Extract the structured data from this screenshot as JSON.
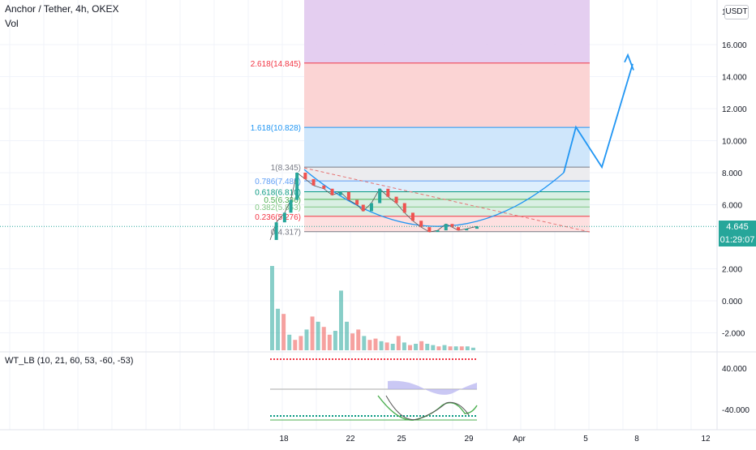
{
  "header": {
    "title": "Anchor / Tether, 4h, OKEX",
    "volume_label": "Vol",
    "currency": "USDT"
  },
  "indicator": {
    "label": "WT_LB (10, 21, 60, 53, -60, -53)",
    "axis_ticks": [
      "40.000",
      "-40.000"
    ]
  },
  "price_tag": {
    "value": "4.645",
    "countdown": "01:29:07"
  },
  "colors": {
    "up": "#26a69a",
    "down": "#ef5350",
    "accent": "#2196f3",
    "purple_zone": "#e1c9ee",
    "red_zone": "#fbd4d4",
    "blue_zone": "#cfe6fb",
    "grey_zone": "#ececef",
    "green_zone": "#d9efe3"
  },
  "chart_data": {
    "type": "candlestick",
    "symbol": "Anchor / Tether",
    "interval": "4h",
    "exchange": "OKEX",
    "x_ticks": [
      "18",
      "22",
      "25",
      "29",
      "Apr",
      "5",
      "8",
      "12"
    ],
    "y_ticks": [
      "16.000",
      "14.000",
      "12.000",
      "10.000",
      "8.000",
      "6.000",
      "2.000",
      "0.000",
      "-2.000"
    ],
    "y_tick_values": [
      16,
      14,
      12,
      10,
      8,
      6,
      2,
      0,
      -2
    ],
    "top_tick": "1",
    "last_price": 4.645,
    "fib_levels": [
      {
        "ratio": "2.618",
        "price": 14.845,
        "label": "2.618(14.845)",
        "color": "#f23645"
      },
      {
        "ratio": "1.618",
        "price": 10.828,
        "label": "1.618(10.828)",
        "color": "#2196f3"
      },
      {
        "ratio": "1",
        "price": 8.345,
        "label": "1(8.345)",
        "color": "#787b86"
      },
      {
        "ratio": "0.786",
        "price": 7.485,
        "label": "0.786(7.485)",
        "color": "#5b9cf6"
      },
      {
        "ratio": "0.618",
        "price": 6.81,
        "label": "0.618(6.810)",
        "color": "#089981"
      },
      {
        "ratio": "0.5",
        "price": 6.336,
        "label": "0.5(6.336)",
        "color": "#4caf50"
      },
      {
        "ratio": "0.382",
        "price": 5.863,
        "label": "0.382(5.863)",
        "color": "#81c784"
      },
      {
        "ratio": "0.236",
        "price": 5.276,
        "label": "0.236(5.276)",
        "color": "#f23645"
      },
      {
        "ratio": "0",
        "price": 4.317,
        "label": "0(4.317)",
        "color": "#787b86"
      }
    ],
    "close_path": [
      [
        0.0,
        3.8
      ],
      [
        0.03,
        4.9
      ],
      [
        0.07,
        5.5
      ],
      [
        0.1,
        6.3
      ],
      [
        0.13,
        8.0
      ],
      [
        0.17,
        7.6
      ],
      [
        0.21,
        7.2
      ],
      [
        0.26,
        7.0
      ],
      [
        0.3,
        6.6
      ],
      [
        0.34,
        6.8
      ],
      [
        0.38,
        6.3
      ],
      [
        0.42,
        6.0
      ],
      [
        0.45,
        5.6
      ],
      [
        0.49,
        6.1
      ],
      [
        0.53,
        7.0
      ],
      [
        0.57,
        6.5
      ],
      [
        0.61,
        6.1
      ],
      [
        0.65,
        5.5
      ],
      [
        0.69,
        5.0
      ],
      [
        0.73,
        4.6
      ],
      [
        0.77,
        4.3
      ],
      [
        0.81,
        4.4
      ],
      [
        0.85,
        4.8
      ],
      [
        0.88,
        4.6
      ],
      [
        0.91,
        4.4
      ],
      [
        0.95,
        4.5
      ],
      [
        1.0,
        4.65
      ]
    ],
    "projection_path": [
      [
        8.0,
        8.3
      ],
      [
        10.85,
        10.85
      ],
      [
        8.35,
        8.35
      ],
      [
        14.8,
        14.8
      ]
    ],
    "volume_bars": [
      [
        1,
        6.5
      ],
      [
        1,
        3.2
      ],
      [
        0,
        2.8
      ],
      [
        1,
        1.2
      ],
      [
        0,
        0.8
      ],
      [
        0,
        1.1
      ],
      [
        1,
        1.6
      ],
      [
        0,
        2.6
      ],
      [
        1,
        2.2
      ],
      [
        0,
        1.8
      ],
      [
        0,
        1.2
      ],
      [
        1,
        1.5
      ],
      [
        1,
        4.6
      ],
      [
        1,
        2.2
      ],
      [
        0,
        1.3
      ],
      [
        0,
        1.6
      ],
      [
        1,
        1.1
      ],
      [
        0,
        0.8
      ],
      [
        0,
        0.9
      ],
      [
        1,
        0.7
      ],
      [
        0,
        0.6
      ],
      [
        1,
        0.5
      ],
      [
        0,
        1.1
      ],
      [
        1,
        0.6
      ],
      [
        0,
        0.4
      ],
      [
        1,
        0.5
      ],
      [
        0,
        0.7
      ],
      [
        1,
        0.5
      ],
      [
        1,
        0.4
      ],
      [
        0,
        0.3
      ],
      [
        1,
        0.4
      ],
      [
        0,
        0.3
      ],
      [
        1,
        0.3
      ],
      [
        0,
        0.3
      ],
      [
        1,
        0.3
      ],
      [
        1,
        0.2
      ]
    ]
  }
}
